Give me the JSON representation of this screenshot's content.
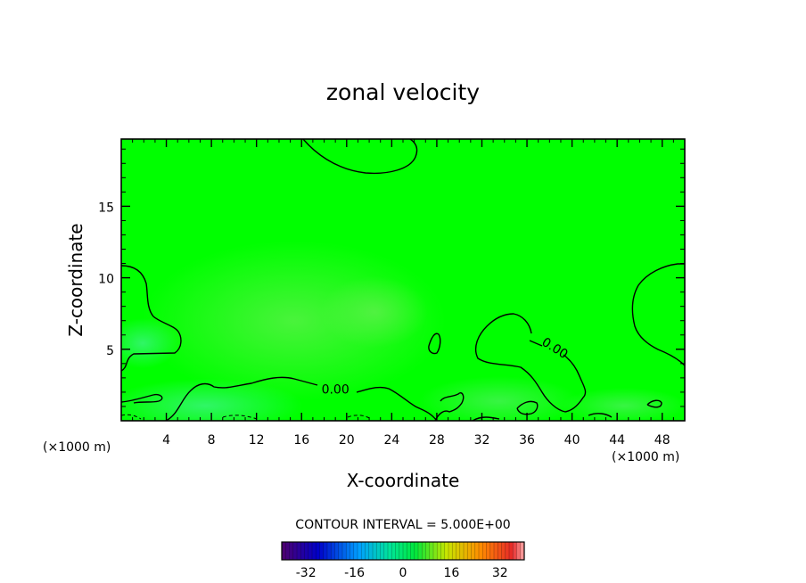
{
  "chart_data": {
    "type": "heatmap",
    "title": "zonal velocity",
    "xlabel": "X-coordinate",
    "ylabel": "Z-coordinate",
    "x_unit": "(×1000 m)",
    "y_unit": "(×1000 m)",
    "xlim": [
      0,
      50
    ],
    "ylim": [
      0,
      19.7
    ],
    "xticks": [
      4,
      8,
      12,
      16,
      20,
      24,
      28,
      32,
      36,
      40,
      44,
      48
    ],
    "yticks": [
      5,
      10,
      15
    ],
    "background_color": "#00ff00",
    "contour_labels": [
      {
        "text": "0.00",
        "x": 19,
        "z": 2.2
      },
      {
        "text": "0.00",
        "x": 38.5,
        "z": 5.1
      }
    ],
    "contour_interval": "CONTOUR INTERVAL = 5.000E+00",
    "colorbar": {
      "range": [
        -40,
        40
      ],
      "ticks": [
        -32,
        -16,
        0,
        16,
        32
      ],
      "tick_labels": [
        "-32",
        "-16",
        "0",
        "16",
        "32"
      ],
      "colormap": "rainbow"
    }
  }
}
